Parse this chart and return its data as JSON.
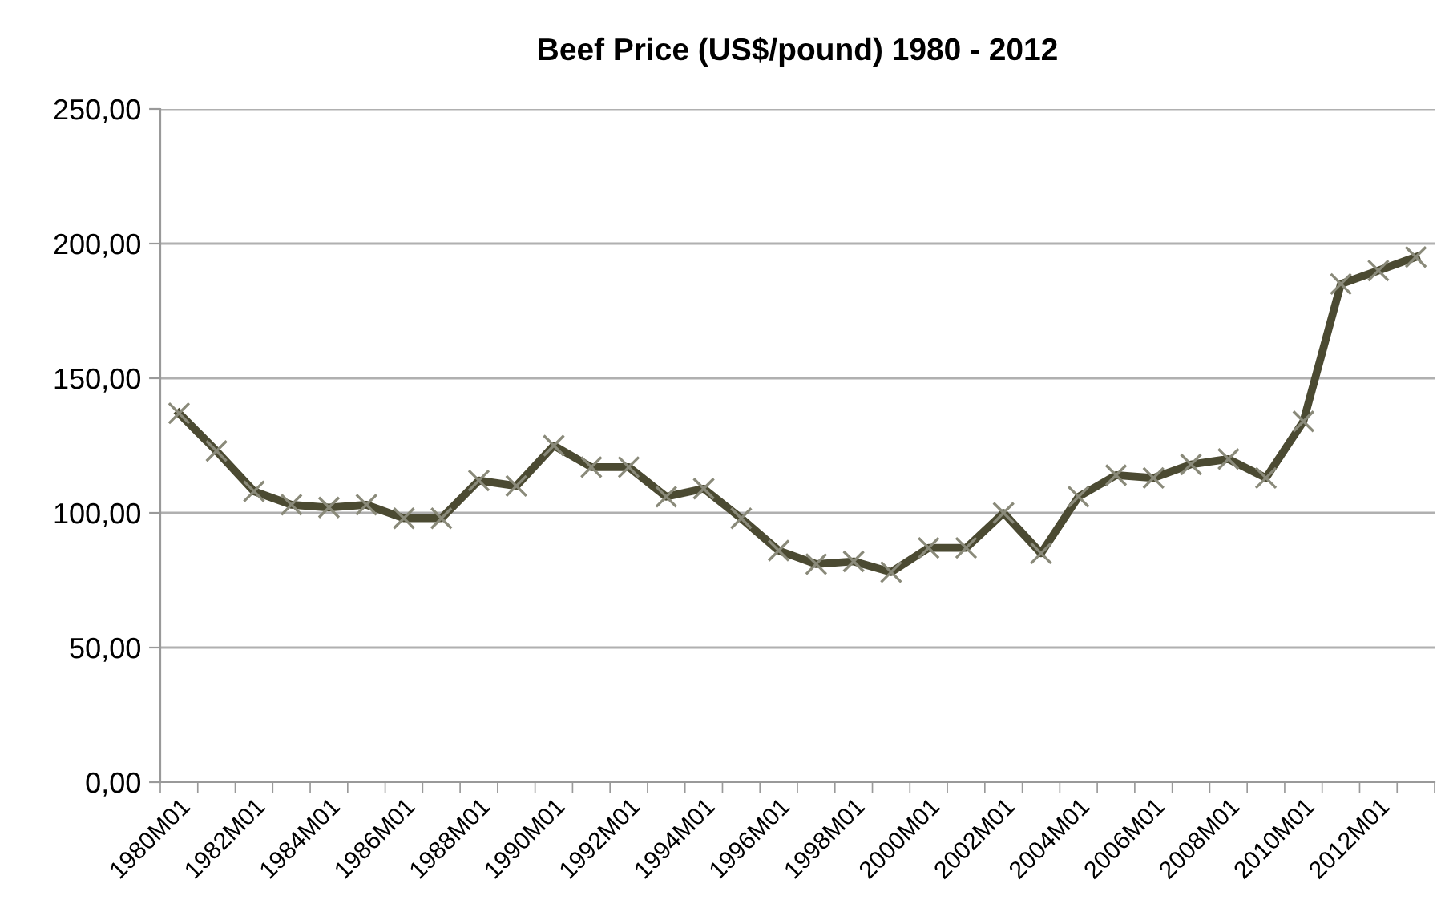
{
  "chart_data": {
    "type": "line",
    "title": "Beef Price (US$/pound) 1980 - 2012",
    "categories": [
      "1980M01",
      null,
      "1982M01",
      null,
      "1984M01",
      null,
      "1986M01",
      null,
      "1988M01",
      null,
      "1990M01",
      null,
      "1992M01",
      null,
      "1994M01",
      null,
      "1996M01",
      null,
      "1998M01",
      null,
      "2000M01",
      null,
      "2002M01",
      null,
      "2004M01",
      null,
      "2006M01",
      null,
      "2008M01",
      null,
      "2010M01",
      null,
      "2012M01",
      null
    ],
    "series": [
      {
        "color": "#4b4a32",
        "values": [
          137,
          123,
          108,
          103,
          102,
          103,
          98,
          98,
          112,
          110,
          125,
          117,
          117,
          106,
          109,
          98,
          86,
          81,
          82,
          78,
          87,
          87,
          100,
          85,
          106,
          114,
          113,
          118,
          120,
          113,
          134,
          185,
          190,
          195
        ]
      }
    ],
    "ylim": [
      0,
      250
    ],
    "yticks": [
      {
        "value": 0,
        "label": "0,00"
      },
      {
        "value": 50,
        "label": "50,00"
      },
      {
        "value": 100,
        "label": "100,00"
      },
      {
        "value": 150,
        "label": "150,00"
      },
      {
        "value": 200,
        "label": "200,00"
      },
      {
        "value": 250,
        "label": "250,00"
      }
    ],
    "grid": "y",
    "marker": "cross",
    "line_style": "solid"
  }
}
